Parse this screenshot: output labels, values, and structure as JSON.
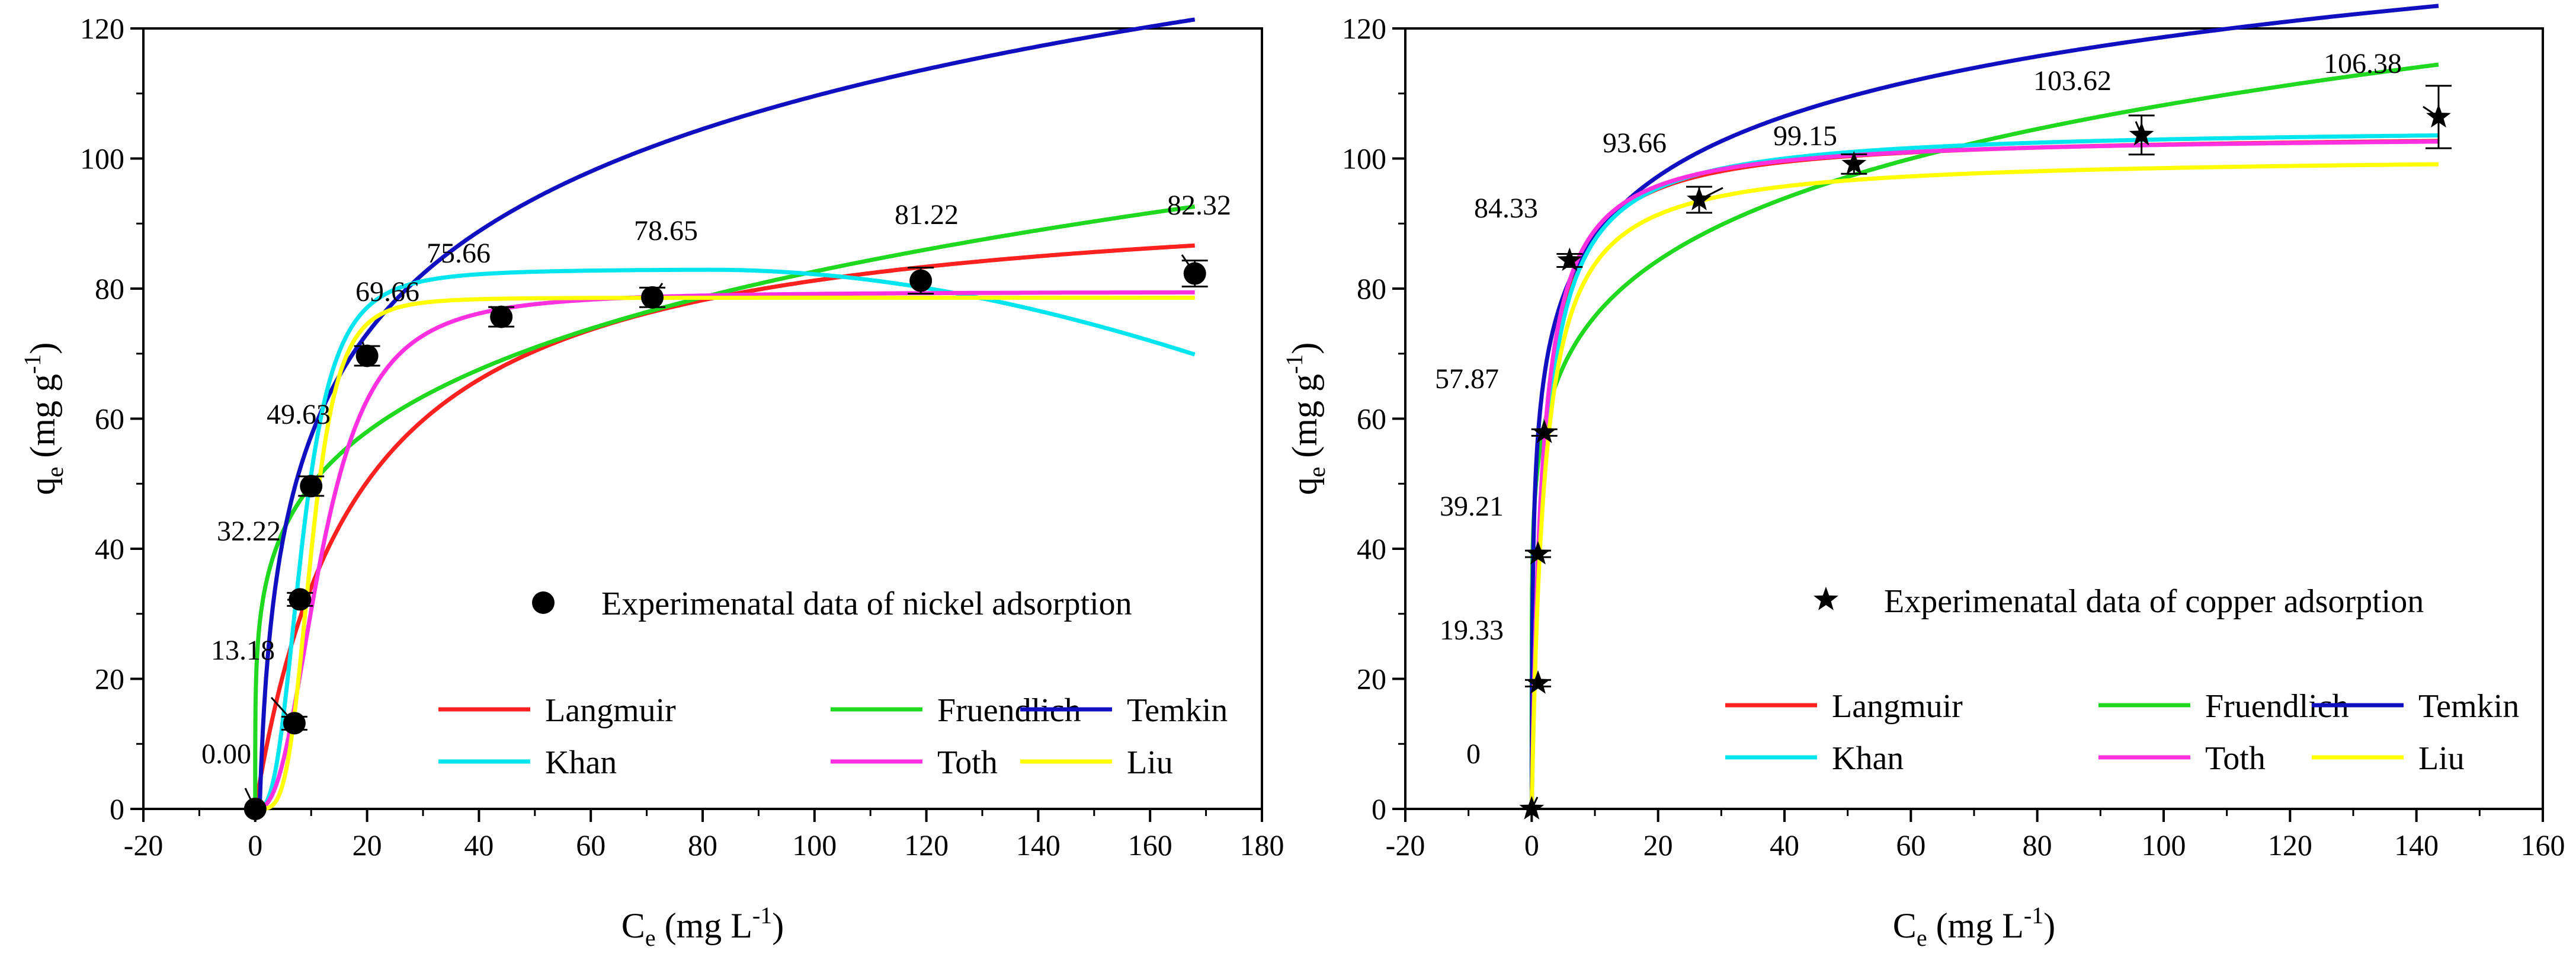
{
  "chart_data": [
    {
      "type": "scatter",
      "panel": "nickel",
      "xlabel_main": "C",
      "xlabel_sub": "e",
      "xlabel_unit": " (mg L",
      "xlabel_sup": "-1",
      "xlabel_close": ")",
      "ylabel_main": "q",
      "ylabel_sub": "e",
      "ylabel_unit": " (mg g",
      "ylabel_sup": "-1",
      "ylabel_close": ")",
      "xlim": [
        -20,
        180
      ],
      "ylim": [
        0,
        120
      ],
      "xticks": [
        "-20",
        "0",
        "20",
        "40",
        "60",
        "80",
        "100",
        "120",
        "140",
        "160",
        "180"
      ],
      "yticks": [
        "0",
        "20",
        "40",
        "60",
        "80",
        "100",
        "120"
      ],
      "marker": "circle",
      "legend_label": "Experimenatal data of nickel adsorption",
      "points": [
        {
          "x": 0,
          "y": 0.0,
          "err": 0,
          "label": "0.00"
        },
        {
          "x": 7,
          "y": 13.18,
          "err": 1,
          "label": "13.18"
        },
        {
          "x": 8,
          "y": 32.22,
          "err": 1,
          "label": "32.22"
        },
        {
          "x": 10,
          "y": 49.63,
          "err": 1.5,
          "label": "49.63"
        },
        {
          "x": 20,
          "y": 69.66,
          "err": 1.5,
          "label": "69.66"
        },
        {
          "x": 44,
          "y": 75.66,
          "err": 1.5,
          "label": "75.66"
        },
        {
          "x": 71,
          "y": 78.65,
          "err": 1.5,
          "label": "78.65"
        },
        {
          "x": 119,
          "y": 81.22,
          "err": 2,
          "label": "81.22"
        },
        {
          "x": 168,
          "y": 82.32,
          "err": 2,
          "label": "82.32"
        }
      ],
      "series": [
        {
          "name": "Langmuir",
          "color": "#ff2020",
          "model": "langmuir",
          "p": [
            96,
            0.055
          ]
        },
        {
          "name": "Fruendlich",
          "color": "#20d820",
          "model": "freundlich",
          "p": [
            30,
            0.22
          ]
        },
        {
          "name": "Temkin",
          "color": "#1010c0",
          "model": "temkin",
          "p": [
            22.7,
            1.25
          ]
        },
        {
          "name": "Khan",
          "color": "#00e5ee",
          "model": "khan",
          "p": [
            83,
            8.5,
            80
          ]
        },
        {
          "name": "Toth",
          "color": "#ff30e0",
          "model": "liu",
          "p": [
            79.5,
            12,
            2.6
          ]
        },
        {
          "name": "Liu",
          "color": "#ffff00",
          "model": "liu",
          "p": [
            78.6,
            10,
            4.2
          ]
        }
      ]
    },
    {
      "type": "scatter",
      "panel": "copper",
      "xlabel_main": "C",
      "xlabel_sub": "e",
      "xlabel_unit": " (mg L",
      "xlabel_sup": "-1",
      "xlabel_close": ")",
      "ylabel_main": "q",
      "ylabel_sub": "e",
      "ylabel_unit": " (mg g",
      "ylabel_sup": "-1",
      "ylabel_close": ")",
      "xlim": [
        -20,
        160
      ],
      "ylim": [
        0,
        120
      ],
      "xticks": [
        "-20",
        "0",
        "20",
        "40",
        "60",
        "80",
        "100",
        "120",
        "140",
        "160"
      ],
      "yticks": [
        "0",
        "20",
        "40",
        "60",
        "80",
        "100",
        "120"
      ],
      "marker": "star",
      "legend_label": "Experimenatal data of copper adsorption",
      "points": [
        {
          "x": 0,
          "y": 0,
          "err": 0,
          "label": "0"
        },
        {
          "x": 1,
          "y": 19.33,
          "err": 0.5,
          "label": "19.33"
        },
        {
          "x": 1,
          "y": 39.21,
          "err": 0.5,
          "label": "39.21"
        },
        {
          "x": 2,
          "y": 57.87,
          "err": 0.5,
          "label": "57.87"
        },
        {
          "x": 6,
          "y": 84.33,
          "err": 1,
          "label": "84.33"
        },
        {
          "x": 26.5,
          "y": 93.66,
          "err": 2,
          "label": "93.66"
        },
        {
          "x": 51,
          "y": 99.15,
          "err": 1.5,
          "label": "99.15"
        },
        {
          "x": 96.5,
          "y": 103.62,
          "err": 3,
          "label": "103.62"
        },
        {
          "x": 143.5,
          "y": 106.38,
          "err": 4.8,
          "label": "106.38"
        }
      ],
      "series": [
        {
          "name": "Langmuir",
          "color": "#ff2020",
          "model": "langmuir",
          "p": [
            104,
            0.55
          ]
        },
        {
          "name": "Fruendlich",
          "color": "#20d820",
          "model": "freundlich",
          "p": [
            53,
            0.155
          ]
        },
        {
          "name": "Temkin",
          "color": "#1010c0",
          "model": "temkin",
          "p": [
            13.3,
            75
          ]
        },
        {
          "name": "Khan",
          "color": "#00e5ee",
          "model": "langmuir",
          "p": [
            105,
            0.5
          ]
        },
        {
          "name": "Toth",
          "color": "#ff30e0",
          "model": "langmuir",
          "p": [
            103.8,
            0.6
          ]
        },
        {
          "name": "Liu",
          "color": "#ffff00",
          "model": "langmuir",
          "p": [
            100.5,
            0.5
          ]
        }
      ]
    }
  ]
}
